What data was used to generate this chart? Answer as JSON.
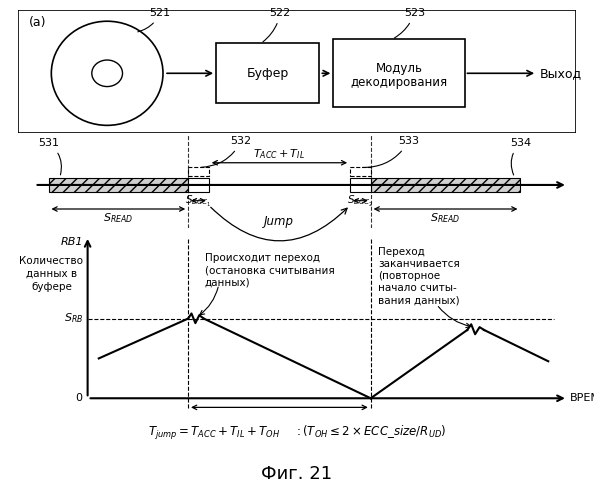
{
  "bg_color": "#ffffff",
  "label_a": "(a)",
  "label_521": "521",
  "label_522": "522",
  "label_523": "523",
  "label_531": "531",
  "label_532": "532",
  "label_533": "533",
  "label_534": "534",
  "buffer_text": "Буфер",
  "decode_line1": "Модуль",
  "decode_line2": "декодирования",
  "output_text": "Выход",
  "time_label": "ВРЕМЯ",
  "text_jump1_l1": "Происходит переход",
  "text_jump1_l2": "(остановка считывания",
  "text_jump1_l3": "данных)",
  "text_jump2_l1": "Переход",
  "text_jump2_l2": "заканчивается",
  "text_jump2_l3": "(повторное",
  "text_jump2_l4": "начало считы-",
  "text_jump2_l5": "вания данных)",
  "fig_label": "Фиг. 21"
}
